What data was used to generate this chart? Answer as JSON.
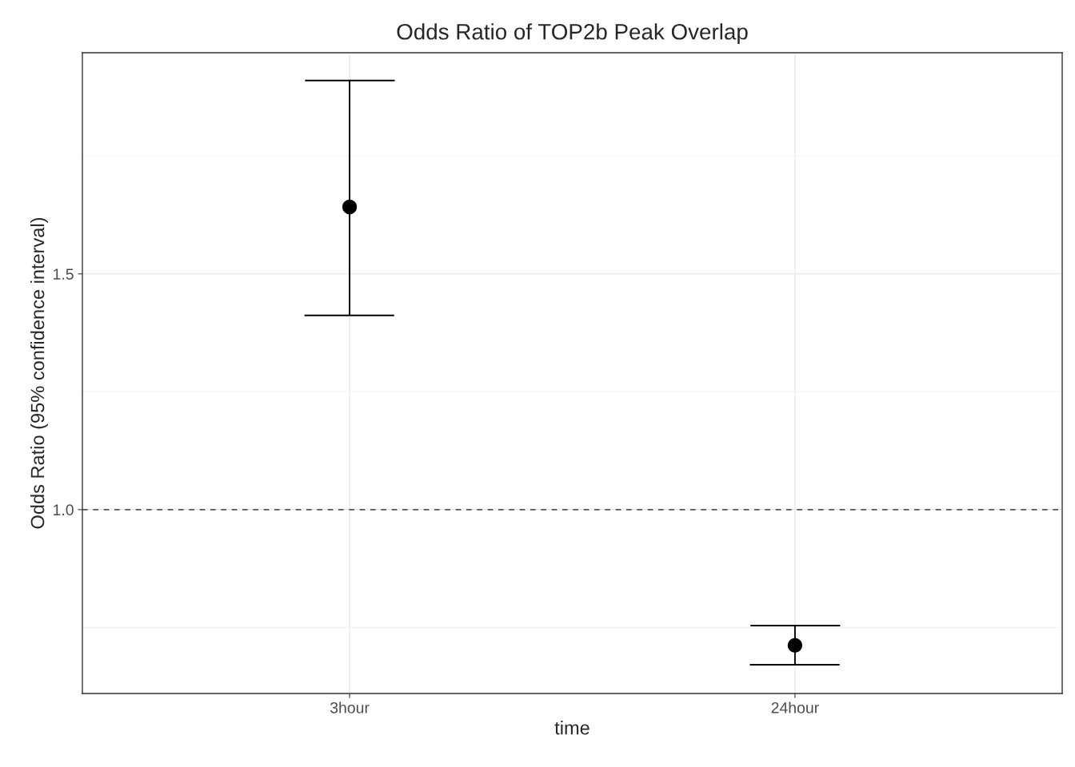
{
  "chart_data": {
    "type": "scatter",
    "title": "Odds Ratio of TOP2b Peak Overlap",
    "xlabel": "time",
    "ylabel": "Odds Ratio (95% confidence interval)",
    "categories": [
      "3hour",
      "24hour"
    ],
    "values": [
      1.642,
      0.712
    ],
    "errors": [
      [
        1.412,
        1.91
      ],
      [
        0.671,
        0.754
      ]
    ],
    "color": "#000000",
    "marker": "circle",
    "ylim": [
      0.61,
      1.969
    ],
    "yticks": [
      {
        "value": 1,
        "label": "1.0"
      },
      {
        "value": 1.5,
        "label": "1.5"
      }
    ],
    "ref_lines": [
      {
        "axis": "y",
        "value": 1.0,
        "color": "#555555",
        "line_style": "dashed"
      }
    ],
    "grid": true,
    "legend": false
  }
}
